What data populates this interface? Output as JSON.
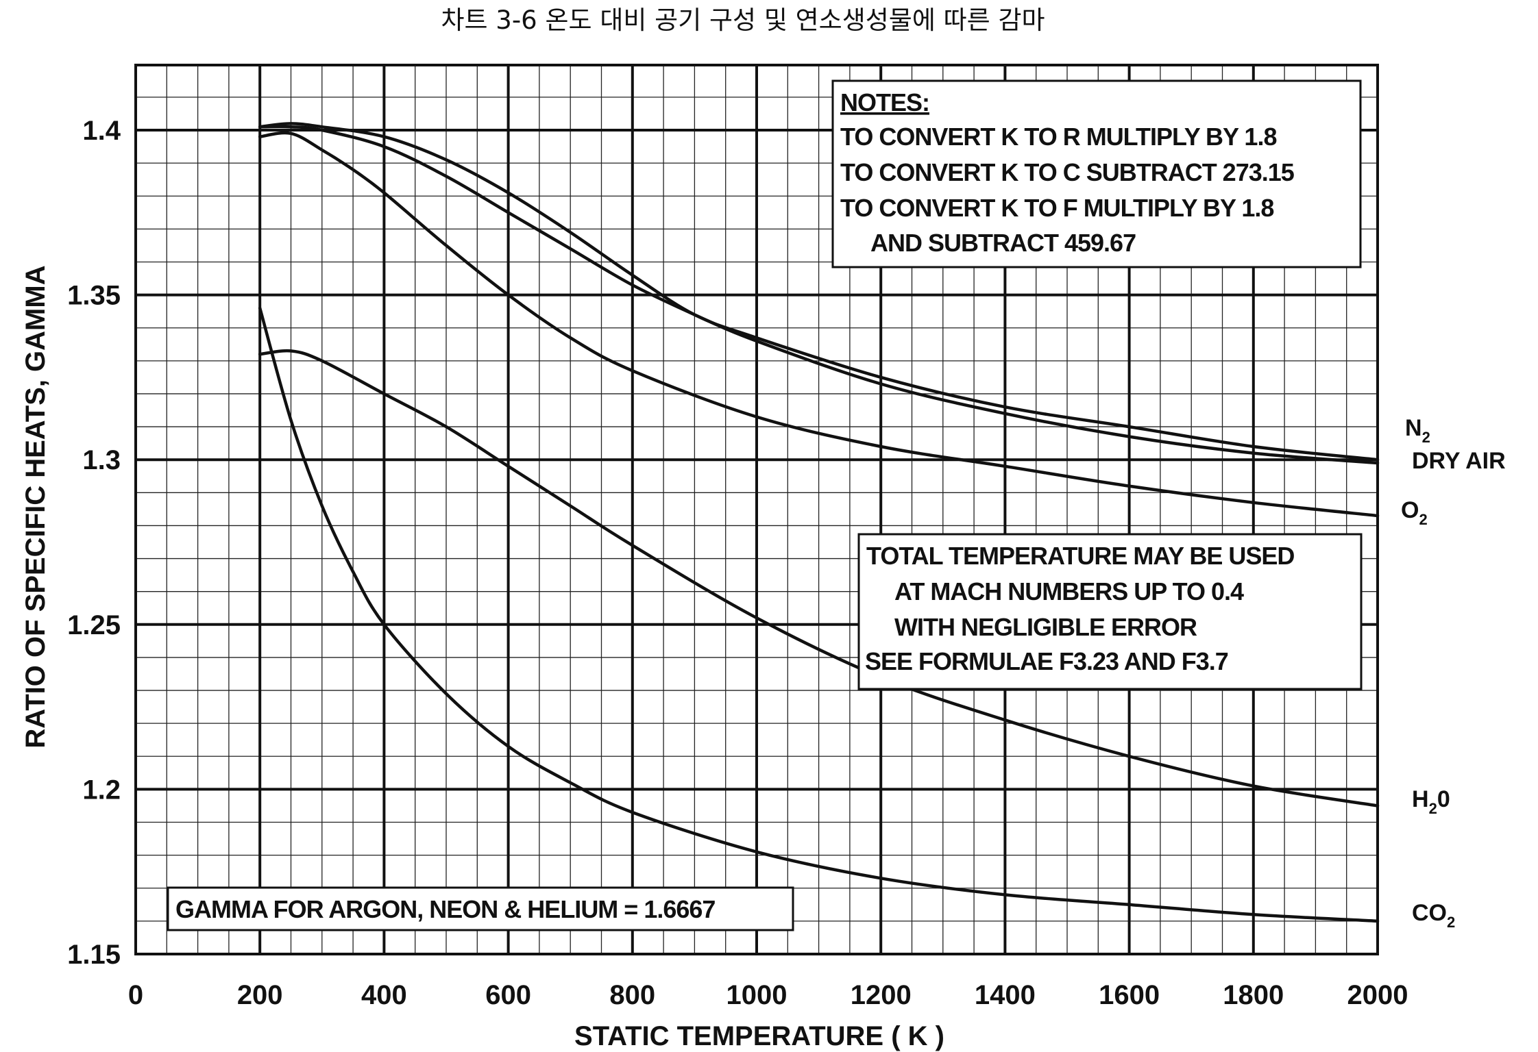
{
  "chart_data": {
    "type": "line",
    "title": "차트 3-6 온도 대비 공기 구성 및 연소생성물에 따른 감마",
    "xlabel": "STATIC TEMPERATURE ( K )",
    "ylabel": "RATIO OF SPECIFIC HEATS, GAMMA",
    "xlim": [
      0,
      2000
    ],
    "ylim": [
      1.15,
      1.42
    ],
    "x_ticks": [
      "0",
      "200",
      "400",
      "600",
      "800",
      "1000",
      "1200",
      "1400",
      "1600",
      "1800",
      "2000"
    ],
    "y_ticks": [
      "1.15",
      "1.2",
      "1.25",
      "1.3",
      "1.35",
      "1.4"
    ],
    "grid": true,
    "series": [
      {
        "name": "N2",
        "label_main": "N",
        "label_sub": "2",
        "x": [
          200,
          250,
          300,
          400,
          500,
          600,
          700,
          800,
          900,
          1000,
          1200,
          1400,
          1600,
          1800,
          2000
        ],
        "values": [
          1.401,
          1.402,
          1.401,
          1.398,
          1.391,
          1.381,
          1.369,
          1.356,
          1.344,
          1.337,
          1.325,
          1.316,
          1.31,
          1.304,
          1.3
        ]
      },
      {
        "name": "DRY AIR",
        "label_main": "DRY AIR",
        "label_sub": "",
        "x": [
          200,
          250,
          300,
          400,
          500,
          600,
          700,
          800,
          900,
          1000,
          1200,
          1400,
          1600,
          1800,
          2000
        ],
        "values": [
          1.401,
          1.401,
          1.4,
          1.395,
          1.386,
          1.375,
          1.364,
          1.353,
          1.344,
          1.336,
          1.323,
          1.314,
          1.307,
          1.302,
          1.299
        ]
      },
      {
        "name": "O2",
        "label_main": "O",
        "label_sub": "2",
        "x": [
          200,
          250,
          300,
          350,
          400,
          500,
          600,
          700,
          800,
          1000,
          1200,
          1400,
          1600,
          1800,
          2000
        ],
        "values": [
          1.398,
          1.399,
          1.394,
          1.388,
          1.381,
          1.365,
          1.35,
          1.337,
          1.327,
          1.313,
          1.304,
          1.298,
          1.292,
          1.287,
          1.283
        ]
      },
      {
        "name": "H20",
        "label_main": "H",
        "label_sub": "2",
        "label_tail": "0",
        "x": [
          200,
          250,
          300,
          400,
          500,
          600,
          700,
          800,
          1000,
          1200,
          1400,
          1600,
          1800,
          2000
        ],
        "values": [
          1.332,
          1.333,
          1.33,
          1.32,
          1.31,
          1.298,
          1.286,
          1.274,
          1.252,
          1.234,
          1.221,
          1.21,
          1.201,
          1.195
        ]
      },
      {
        "name": "CO2",
        "label_main": "CO",
        "label_sub": "2",
        "x": [
          200,
          250,
          300,
          350,
          400,
          500,
          600,
          700,
          800,
          1000,
          1200,
          1400,
          1600,
          1800,
          2000
        ],
        "values": [
          1.346,
          1.312,
          1.286,
          1.266,
          1.25,
          1.229,
          1.213,
          1.202,
          1.193,
          1.181,
          1.173,
          1.168,
          1.165,
          1.162,
          1.16
        ]
      }
    ],
    "annotations": {
      "notes": [
        "NOTES:",
        "TO CONVERT K TO R MULTIPLY BY 1.8",
        "TO CONVERT K TO C SUBTRACT 273.15",
        "TO CONVERT K TO F MULTIPLY BY 1.8",
        "AND SUBTRACT 459.67"
      ],
      "total_temperature": [
        "TOTAL TEMPERATURE MAY BE USED",
        "AT MACH  NUMBERS UP TO 0.4",
        "WITH NEGLIGIBLE ERROR",
        "SEE FORMULAE F3.23 AND F3.7"
      ],
      "gamma_note": "GAMMA FOR ARGON, NEON & HELIUM = 1.6667"
    }
  }
}
